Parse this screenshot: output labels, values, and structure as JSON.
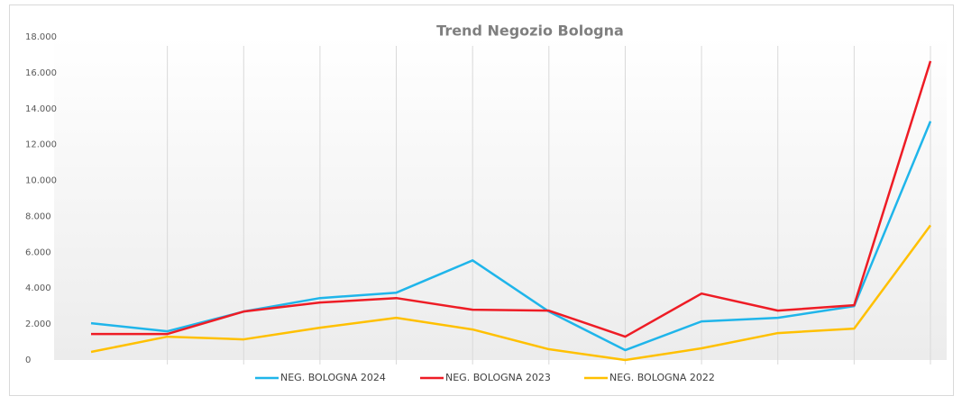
{
  "chart_data": {
    "type": "line",
    "title": "Trend Negozio Bologna",
    "categories": [
      null,
      null,
      null,
      null,
      null,
      null,
      null,
      null,
      null,
      null,
      null,
      null
    ],
    "series": [
      {
        "name": "NEG. BOLOGNA 2024",
        "color": "#1fb5ea",
        "values": [
          2050,
          1600,
          2700,
          3450,
          3750,
          5550,
          2700,
          550,
          2150,
          2350,
          3000,
          13300
        ]
      },
      {
        "name": "NEG. BOLOGNA 2023",
        "color": "#ee1c25",
        "values": [
          1450,
          1450,
          2700,
          3200,
          3450,
          2800,
          2750,
          1300,
          3700,
          2750,
          3050,
          16650
        ]
      },
      {
        "name": "NEG. BOLOGNA 2022",
        "color": "#ffc000",
        "values": [
          450,
          1300,
          1150,
          1800,
          2350,
          1700,
          600,
          0,
          650,
          1500,
          1750,
          7500
        ]
      }
    ],
    "ylim": [
      0,
      18000
    ],
    "yticks": [
      0,
      {
        "value": 2000,
        "label": "2.000"
      },
      {
        "value": 4000,
        "label": "4.000"
      },
      {
        "value": 6000,
        "label": "6.000"
      },
      {
        "value": 8000,
        "label": "8.000"
      },
      {
        "value": 10000,
        "label": "10.000"
      },
      {
        "value": 12000,
        "label": "12.000"
      },
      {
        "value": 14000,
        "label": "14.000"
      },
      {
        "value": 16000,
        "label": "16.000"
      },
      {
        "value": 18000,
        "label": "18.000"
      }
    ],
    "grid": true,
    "legend": "bottom"
  }
}
